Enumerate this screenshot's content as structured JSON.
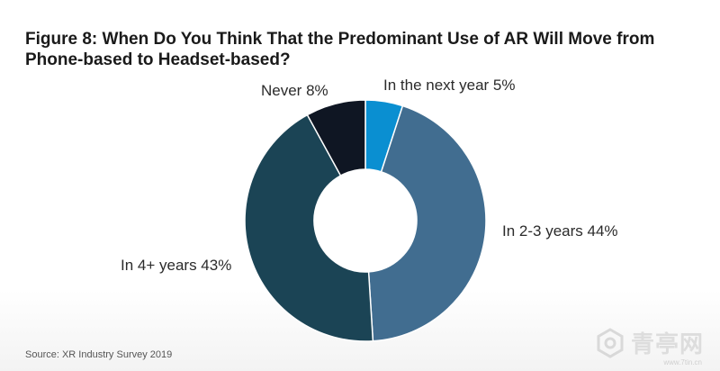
{
  "chart_data": {
    "type": "pie",
    "donut": true,
    "title": "Figure 8: When Do You Think That the Predominant Use of AR Will Move from Phone-based to Headset-based?",
    "slices": [
      {
        "name": "In the next year",
        "value": 5,
        "color": "#0a8fd1",
        "label": "In the next year 5%"
      },
      {
        "name": "In 2-3 years",
        "value": 44,
        "color": "#416d90",
        "label": "In 2-3 years 44%"
      },
      {
        "name": "In 4+ years",
        "value": 43,
        "color": "#1b4455",
        "label": "In 4+ years 43%"
      },
      {
        "name": "Never",
        "value": 8,
        "color": "#0f1623",
        "label": "Never 8%"
      }
    ]
  },
  "source": "Source: XR Industry Survey 2019",
  "watermark": {
    "text": "青亭网",
    "url": "www.7tin.cn"
  }
}
